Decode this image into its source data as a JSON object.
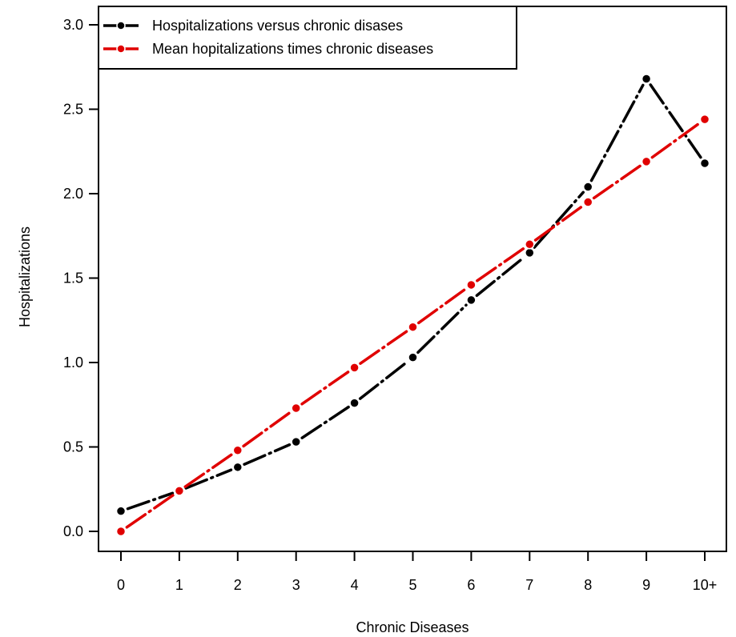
{
  "chart_data": {
    "type": "line",
    "title": "",
    "xlabel": "Chronic Diseases",
    "ylabel": "Hospitalizations",
    "categories": [
      "0",
      "1",
      "2",
      "3",
      "4",
      "5",
      "6",
      "7",
      "8",
      "9",
      "10+"
    ],
    "ylim": [
      0,
      3.0
    ],
    "yticks": [
      "0.0",
      "0.5",
      "1.0",
      "1.5",
      "2.0",
      "2.5",
      "3.0"
    ],
    "yticks_values": [
      0,
      0.5,
      1.0,
      1.5,
      2.0,
      2.5,
      3.0
    ],
    "grid": false,
    "legend_position": "top-left",
    "series": [
      {
        "name": "Hospitalizations versus chronic disases",
        "color": "#000000",
        "style": "dash-dot with points",
        "values": [
          0.12,
          0.24,
          0.38,
          0.53,
          0.76,
          1.03,
          1.37,
          1.65,
          2.04,
          2.68,
          2.18
        ]
      },
      {
        "name": "Mean hopitalizations times chronic diseases",
        "color": "#e00000",
        "style": "dash-dot with points",
        "values": [
          0.0,
          0.24,
          0.48,
          0.73,
          0.97,
          1.21,
          1.46,
          1.7,
          1.95,
          2.19,
          2.44
        ]
      }
    ]
  }
}
